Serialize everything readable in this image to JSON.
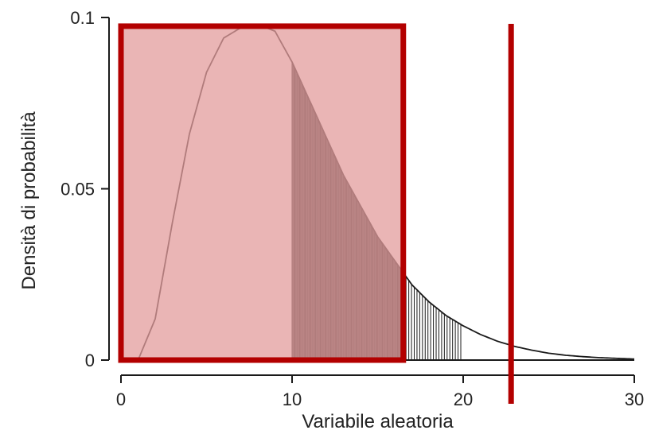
{
  "chart_data": {
    "type": "area",
    "title": "",
    "xlabel": "Variabile aleatoria",
    "ylabel": "Densità di probabilità",
    "xlim": [
      0,
      30
    ],
    "ylim": [
      0,
      0.1
    ],
    "x_ticks": [
      0,
      10,
      20,
      30
    ],
    "x_tick_labels": [
      "0",
      "10",
      "20",
      "30"
    ],
    "y_ticks": [
      0,
      0.05,
      0.1
    ],
    "y_tick_labels": [
      "0",
      "0.05",
      "0.1"
    ],
    "grid": false,
    "series": [
      {
        "x": [
          0,
          1,
          2,
          3,
          4,
          5,
          6,
          7,
          8,
          9,
          10,
          11,
          12,
          13,
          14,
          15,
          16,
          17,
          18,
          19,
          20,
          21,
          22,
          23,
          24,
          25,
          26,
          27,
          28,
          29,
          30
        ],
        "y": [
          0,
          0.0,
          0.012,
          0.04,
          0.066,
          0.084,
          0.094,
          0.097,
          0.098,
          0.096,
          0.087,
          0.076,
          0.065,
          0.054,
          0.045,
          0.036,
          0.029,
          0.022,
          0.017,
          0.013,
          0.01,
          0.0075,
          0.0055,
          0.004,
          0.0029,
          0.002,
          0.0014,
          0.001,
          0.0007,
          0.0005,
          0.0003
        ]
      }
    ],
    "shaded_regions": [
      {
        "from": 10,
        "to": 16.5,
        "style": "dense"
      },
      {
        "from": 16.5,
        "to": 20,
        "style": "sparse"
      }
    ],
    "annotations": {
      "highlight_box": {
        "x": [
          0,
          16.5
        ],
        "y": [
          0,
          0.097
        ],
        "color": "#b30000",
        "fill": "#e39c9c"
      },
      "vertical_line": {
        "x": 22.8,
        "color": "#b30000"
      }
    }
  },
  "colors": {
    "curve": "#1a1a1a",
    "axis": "#1a1a1a",
    "highlight": "#b30000",
    "highlight_fill": "#e39c9c"
  }
}
